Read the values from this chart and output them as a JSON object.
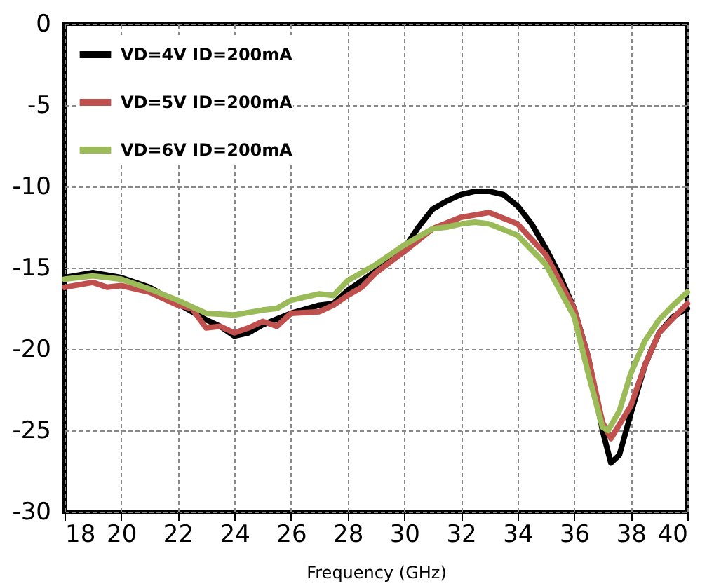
{
  "chart_data": {
    "type": "line",
    "xlabel": "Frequency (GHz)",
    "xlim": [
      18,
      40
    ],
    "xticks": [
      18,
      20,
      22,
      24,
      26,
      28,
      30,
      32,
      34,
      36,
      38,
      40
    ],
    "ylim": [
      -30,
      0
    ],
    "yticks": [
      -30,
      -25,
      -20,
      -15,
      -10,
      -5,
      0
    ],
    "grid": true,
    "legend": "top left",
    "line_style": "solid",
    "marker": "none",
    "series": [
      {
        "name": "VD=4V ID=200mA",
        "color": "#000000",
        "x": [
          18,
          19,
          20,
          21,
          22,
          23,
          23.5,
          24,
          24.5,
          25,
          26,
          27,
          27.5,
          28,
          29,
          30,
          30.5,
          31,
          31.5,
          32,
          32.5,
          33,
          33.5,
          34,
          34.5,
          35,
          35.5,
          36,
          36.5,
          37,
          37.3,
          37.6,
          38,
          38.5,
          39,
          39.5,
          40
        ],
        "values": [
          -15.6,
          -15.3,
          -15.6,
          -16.2,
          -17.2,
          -18.2,
          -18.6,
          -19.2,
          -19,
          -18.5,
          -17.8,
          -17.3,
          -17.2,
          -16.4,
          -15.2,
          -13.8,
          -12.5,
          -11.4,
          -10.9,
          -10.5,
          -10.3,
          -10.3,
          -10.5,
          -11.2,
          -12.3,
          -13.8,
          -15.5,
          -17.5,
          -20.5,
          -25,
          -27,
          -26.5,
          -24,
          -21,
          -19,
          -18,
          -17.5
        ]
      },
      {
        "name": "VD=5V ID=200mA",
        "color": "#c0504d",
        "x": [
          18,
          19,
          19.5,
          20,
          20.5,
          21,
          22,
          22.5,
          23,
          23.5,
          24,
          24.5,
          25,
          25.5,
          26,
          27,
          27.5,
          28,
          28.5,
          29,
          30,
          31,
          32,
          33,
          34,
          35,
          36,
          36.5,
          37,
          37.3,
          38,
          38.5,
          39,
          40
        ],
        "values": [
          -16.2,
          -15.9,
          -16.2,
          -16.1,
          -16.3,
          -16.5,
          -17.3,
          -17.5,
          -18.7,
          -18.6,
          -19,
          -18.7,
          -18.3,
          -18.6,
          -17.8,
          -17.7,
          -17.3,
          -16.7,
          -16.2,
          -15.3,
          -14,
          -12.6,
          -11.9,
          -11.6,
          -12.3,
          -14.2,
          -17.5,
          -20.5,
          -24.5,
          -25.5,
          -23.5,
          -21,
          -19,
          -17.2
        ]
      },
      {
        "name": "VD=6V ID=200mA",
        "color": "#9bbb59",
        "x": [
          18,
          19,
          20,
          21,
          22,
          23,
          24,
          25,
          25.5,
          26,
          27,
          27.5,
          28,
          29,
          30,
          31,
          31.5,
          32,
          32.5,
          33,
          34,
          35,
          36,
          36.5,
          37,
          37.2,
          37.6,
          38,
          38.5,
          39,
          39.5,
          40
        ],
        "values": [
          -15.7,
          -15.5,
          -15.7,
          -16.3,
          -17,
          -17.8,
          -17.9,
          -17.6,
          -17.5,
          -17,
          -16.6,
          -16.7,
          -15.8,
          -14.8,
          -13.6,
          -12.6,
          -12.5,
          -12.3,
          -12.2,
          -12.3,
          -13,
          -14.8,
          -18,
          -21.5,
          -24.8,
          -25,
          -23.8,
          -21.5,
          -19.5,
          -18.2,
          -17.3,
          -16.5
        ]
      }
    ]
  }
}
